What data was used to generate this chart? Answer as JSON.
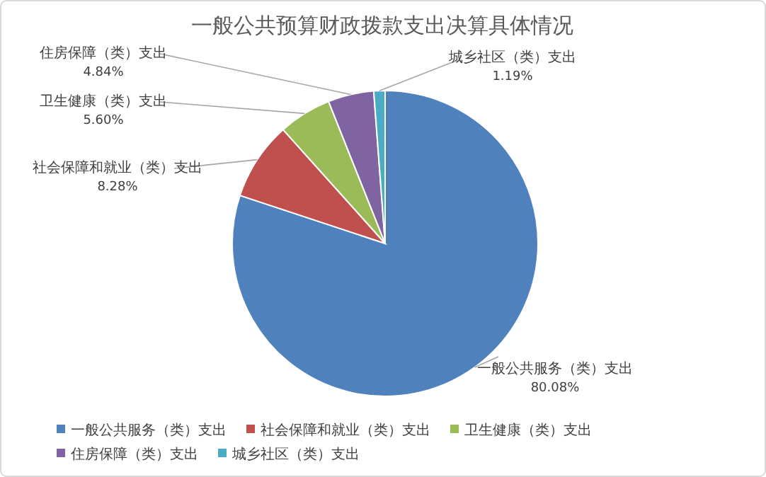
{
  "chart_data": {
    "type": "pie",
    "title": "一般公共预算财政拨款支出决算具体情况",
    "categories": [
      "一般公共服务（类）支出",
      "社会保障和就业（类）支出",
      "卫生健康（类）支出",
      "住房保障（类）支出",
      "城乡社区（类）支出"
    ],
    "values": [
      80.08,
      8.28,
      5.6,
      4.84,
      1.19
    ],
    "value_labels": [
      "80.08%",
      "8.28%",
      "5.60%",
      "4.84%",
      "1.19%"
    ],
    "colors": [
      "#4f81bd",
      "#c0504d",
      "#9bbb59",
      "#8064a2",
      "#4bacc6"
    ],
    "legend": "bottom"
  }
}
